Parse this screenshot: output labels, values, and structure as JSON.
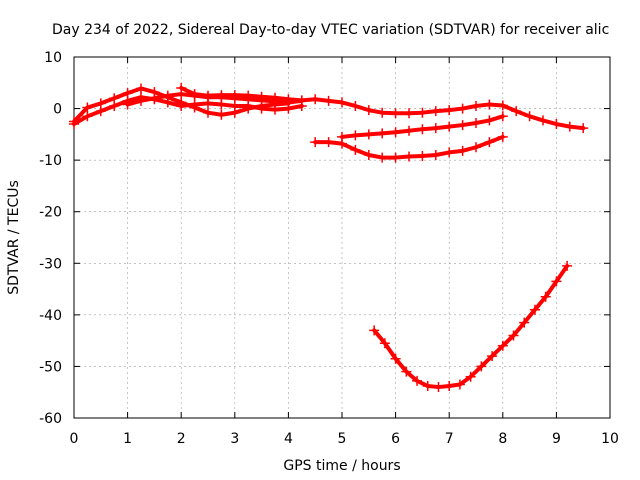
{
  "chart_data": {
    "type": "scatter",
    "title": "Day 234 of 2022, Sidereal Day-to-day VTEC variation (SDTVAR) for receiver alic",
    "xlabel": "GPS time / hours",
    "ylabel": "SDTVAR / TECUs",
    "xlim": [
      0,
      10
    ],
    "ylim": [
      -60,
      10
    ],
    "xticks": [
      "0",
      "1",
      "2",
      "3",
      "4",
      "5",
      "6",
      "7",
      "8",
      "9",
      "10"
    ],
    "yticks": [
      "10",
      "0",
      "-10",
      "-20",
      "-30",
      "-40",
      "-50",
      "-60"
    ],
    "grid": true,
    "marker": "plus",
    "color": "#ff0000",
    "series": [
      {
        "x": [
          0.0,
          0.25,
          0.5,
          0.75,
          1.0,
          1.25,
          1.5,
          1.75,
          2.0,
          2.25,
          2.5,
          2.75,
          3.0,
          3.25,
          3.5,
          3.75,
          4.0
        ],
        "y": [
          -2.5,
          0.2,
          1.0,
          2.0,
          3.0,
          3.9,
          3.2,
          2.2,
          1.2,
          0.2,
          -0.8,
          -1.2,
          -0.8,
          0.0,
          0.5,
          0.8,
          1.0
        ]
      },
      {
        "x": [
          0.0,
          0.25,
          0.5,
          0.75,
          1.0,
          1.25,
          1.5,
          1.75,
          2.0,
          2.25,
          2.5,
          2.75,
          3.0,
          3.25,
          3.5,
          3.75,
          4.0,
          4.25
        ],
        "y": [
          -3.0,
          -1.5,
          -0.5,
          0.5,
          1.5,
          2.2,
          1.8,
          1.2,
          0.5,
          0.8,
          1.0,
          0.8,
          0.5,
          0.5,
          0.0,
          -0.2,
          0.0,
          0.5
        ]
      },
      {
        "x": [
          1.0,
          1.25,
          1.5,
          1.75,
          2.0,
          2.25,
          2.5,
          2.75,
          3.0,
          3.25,
          3.5,
          3.75,
          4.0,
          4.25
        ],
        "y": [
          0.8,
          1.5,
          2.0,
          2.5,
          2.8,
          2.5,
          2.2,
          2.2,
          2.0,
          1.8,
          1.6,
          1.4,
          1.2,
          1.5
        ]
      },
      {
        "x": [
          2.0,
          2.25,
          2.5,
          2.75,
          3.0,
          3.25,
          3.5,
          3.75,
          4.0,
          4.25,
          4.5,
          4.75,
          5.0,
          5.25,
          5.5,
          5.75,
          6.0,
          6.25,
          6.5,
          6.75,
          7.0,
          7.25,
          7.5,
          7.75,
          8.0,
          8.25,
          8.5,
          8.75,
          9.0,
          9.25,
          9.5
        ],
        "y": [
          4.0,
          2.8,
          2.5,
          2.6,
          2.6,
          2.5,
          2.3,
          2.1,
          1.8,
          1.6,
          1.8,
          1.5,
          1.2,
          0.5,
          -0.3,
          -0.8,
          -0.9,
          -0.9,
          -0.8,
          -0.5,
          -0.3,
          0.0,
          0.5,
          0.8,
          0.6,
          -0.5,
          -1.5,
          -2.3,
          -3.0,
          -3.5,
          -3.8
        ]
      },
      {
        "x": [
          4.5,
          4.75,
          5.0,
          5.25,
          5.5,
          5.75,
          6.0,
          6.25,
          6.5,
          6.75,
          7.0,
          7.25,
          7.5,
          7.75,
          8.0
        ],
        "y": [
          -6.5,
          -6.5,
          -6.8,
          -8.0,
          -9.0,
          -9.5,
          -9.5,
          -9.3,
          -9.2,
          -9.0,
          -8.5,
          -8.2,
          -7.5,
          -6.5,
          -5.5
        ]
      },
      {
        "x": [
          5.0,
          5.25,
          5.5,
          5.75,
          6.0,
          6.25,
          6.5,
          6.75,
          7.0,
          7.25,
          7.5,
          7.75,
          8.0
        ],
        "y": [
          -5.5,
          -5.2,
          -5.0,
          -4.8,
          -4.6,
          -4.3,
          -4.0,
          -3.8,
          -3.5,
          -3.2,
          -2.8,
          -2.3,
          -1.5
        ]
      },
      {
        "x": [
          5.6,
          5.8,
          6.0,
          6.2,
          6.4,
          6.6,
          6.8,
          7.0,
          7.2,
          7.4,
          7.6,
          7.8,
          8.0,
          8.2,
          8.4,
          8.6,
          8.8,
          9.0,
          9.2
        ],
        "y": [
          -43,
          -45.5,
          -48.5,
          -51,
          -52.8,
          -53.8,
          -54,
          -53.8,
          -53.5,
          -52,
          -50,
          -48,
          -46,
          -44,
          -41.5,
          -39,
          -36.5,
          -33.5,
          -30.5
        ]
      }
    ]
  }
}
